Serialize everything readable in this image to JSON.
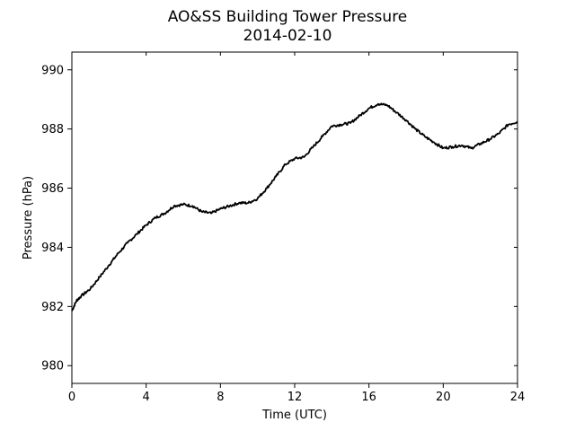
{
  "chart_data": {
    "type": "line",
    "title": "AO&SS Building Tower Pressure",
    "subtitle": "2014-02-10",
    "xlabel": "Time (UTC)",
    "ylabel": "Pressure (hPa)",
    "xlim": [
      0,
      24
    ],
    "ylim": [
      979.4,
      990.6
    ],
    "xticks": [
      0,
      4,
      8,
      12,
      16,
      20,
      24
    ],
    "yticks": [
      980,
      982,
      984,
      986,
      988,
      990
    ],
    "grid": false,
    "legend": "none",
    "line_color": "#000000",
    "series": [
      {
        "x": [
          0,
          0.25,
          0.5,
          1,
          1.5,
          2,
          2.5,
          3,
          3.5,
          4,
          4.5,
          5,
          5.5,
          6,
          6.5,
          7,
          7.5,
          8,
          8.5,
          9,
          9.5,
          10,
          10.5,
          11,
          11.5,
          12,
          12.5,
          13,
          13.5,
          14,
          14.5,
          15,
          15.5,
          16,
          16.5,
          17,
          17.5,
          18,
          18.5,
          19,
          19.5,
          20,
          20.5,
          21,
          21.5,
          22,
          22.5,
          23,
          23.5,
          24
        ],
        "y": [
          981.85,
          982.2,
          982.35,
          982.6,
          983.0,
          983.4,
          983.8,
          984.15,
          984.45,
          984.75,
          985.0,
          985.15,
          985.4,
          985.45,
          985.4,
          985.2,
          985.15,
          985.3,
          985.4,
          985.5,
          985.5,
          985.65,
          986.0,
          986.4,
          986.8,
          987.0,
          987.05,
          987.4,
          987.75,
          988.1,
          988.15,
          988.2,
          988.45,
          988.7,
          988.85,
          988.8,
          988.55,
          988.3,
          988.0,
          987.75,
          987.55,
          987.35,
          987.4,
          987.45,
          987.35,
          987.5,
          987.65,
          987.85,
          988.15,
          988.25
        ]
      }
    ]
  }
}
